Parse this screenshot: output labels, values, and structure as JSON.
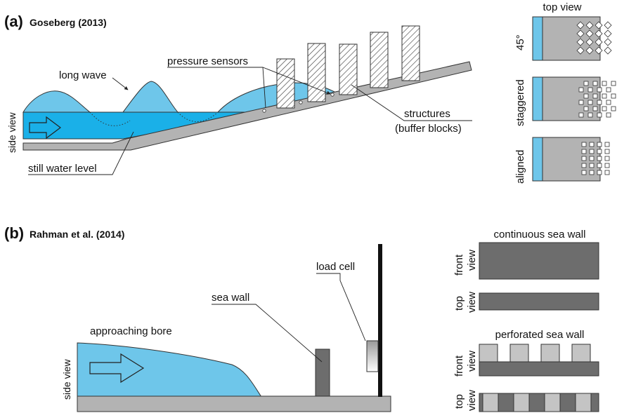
{
  "panel_a": {
    "letter": "(a)",
    "reference": "Goseberg (2013)",
    "labels": {
      "long_wave": "long wave",
      "pressure_sensors": "pressure sensors",
      "structures": "structures",
      "buffer_blocks": "(buffer blocks)",
      "still_water_level": "still water level",
      "side_view": "side view"
    },
    "top_view": {
      "title": "top view",
      "layouts": [
        "45°",
        "staggered",
        "aligned"
      ]
    }
  },
  "panel_b": {
    "letter": "(b)",
    "reference": "Rahman et al. (2014)",
    "labels": {
      "load_cell": "load cell",
      "sea_wall": "sea wall",
      "approaching_bore": "approaching bore",
      "side_view": "side view"
    },
    "continuous": {
      "title": "continuous sea wall",
      "front_view": [
        "front",
        "view"
      ],
      "top_view": [
        "top",
        "view"
      ]
    },
    "perforated": {
      "title": "perforated sea wall",
      "front_view": [
        "front",
        "view"
      ],
      "top_view": [
        "top",
        "view"
      ]
    }
  },
  "colors": {
    "water_light": "#6ec6ea",
    "water_dark": "#1ab0e8",
    "slope_gray": "#b3b3b3",
    "wall_dark": "#6d6d6d",
    "wall_light": "#c4c4c4"
  }
}
